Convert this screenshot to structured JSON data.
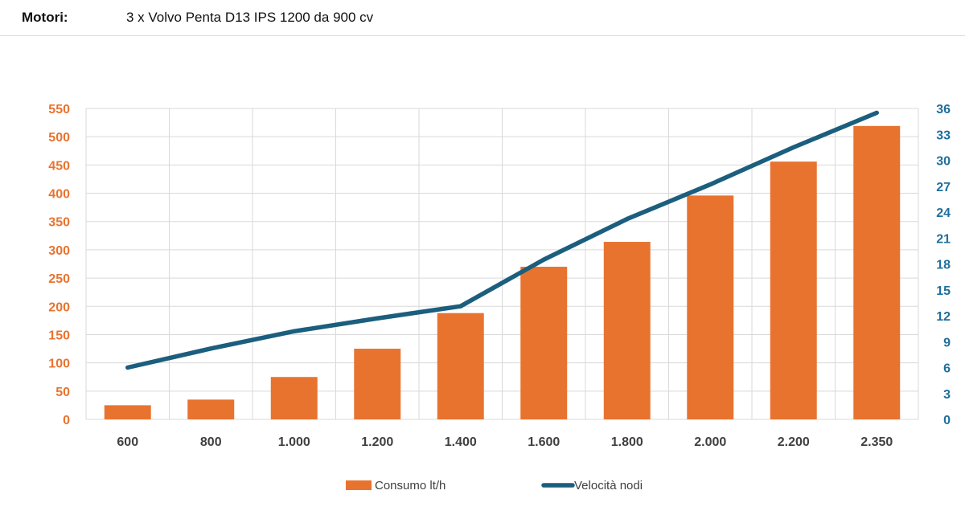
{
  "header": {
    "label": "Motori:",
    "value": "3 x Volvo Penta D13 IPS 1200 da 900 cv"
  },
  "colors": {
    "bar": "#e8732f",
    "line": "#1b5e7e",
    "grid": "#d9d9d9",
    "left_axis": "#e8732f",
    "right_axis": "#1f6f9c"
  },
  "chart_data": {
    "type": "bar",
    "categories": [
      "600",
      "800",
      "1.000",
      "1.200",
      "1.400",
      "1.600",
      "1.800",
      "2.000",
      "2.200",
      "2.350"
    ],
    "series": [
      {
        "name": "Consumo lt/h",
        "type": "bar",
        "axis": "left",
        "values": [
          25,
          35,
          75,
          125,
          188,
          270,
          314,
          396,
          456,
          519
        ]
      },
      {
        "name": "Velocità nodi",
        "type": "line",
        "axis": "right",
        "values": [
          6,
          8.2,
          10.2,
          11.7,
          13.1,
          18.5,
          23.2,
          27.2,
          31.5,
          35.5
        ]
      }
    ],
    "y_left": {
      "range": [
        0,
        550
      ],
      "ticks": [
        "0",
        "50",
        "100",
        "150",
        "200",
        "250",
        "300",
        "350",
        "400",
        "450",
        "500",
        "550"
      ]
    },
    "y_right": {
      "range": [
        0,
        36
      ],
      "ticks": [
        "0",
        "3",
        "6",
        "9",
        "12",
        "15",
        "18",
        "21",
        "24",
        "27",
        "30",
        "33",
        "36"
      ]
    },
    "grid": true,
    "legend_position": "bottom"
  }
}
